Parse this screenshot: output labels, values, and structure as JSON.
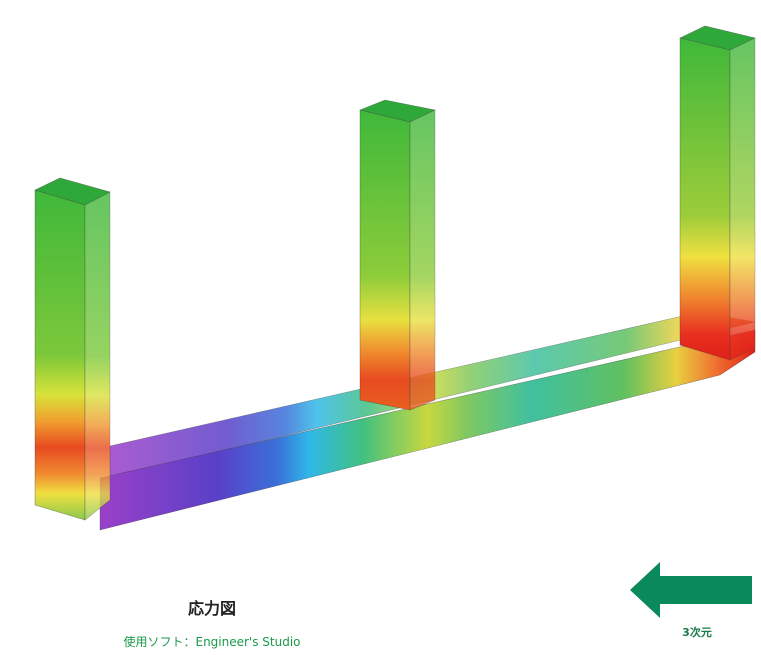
{
  "caption": {
    "title": "応力図",
    "software": "使用ソフト：Engineer's Studio"
  },
  "arrow": {
    "label": "3次元"
  }
}
